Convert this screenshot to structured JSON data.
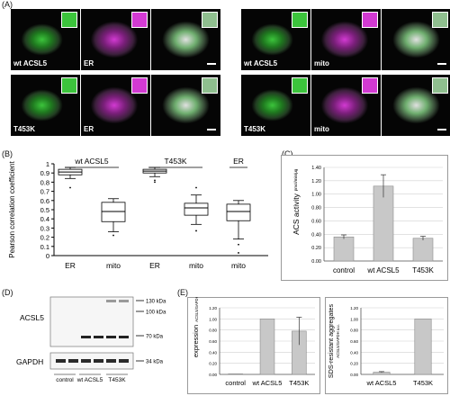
{
  "panels": {
    "A": "(A)",
    "B": "(B)",
    "C": "(C)",
    "D": "(D)",
    "E": "(E)"
  },
  "panel_a": {
    "images": [
      {
        "label": "wt ACSL5",
        "channel": "green"
      },
      {
        "label": "ER",
        "channel": "magenta"
      },
      {
        "label": "",
        "channel": "merge"
      },
      {
        "label": "wt ACSL5",
        "channel": "green"
      },
      {
        "label": "mito",
        "channel": "magenta"
      },
      {
        "label": "",
        "channel": "merge"
      },
      {
        "label": "T453K",
        "channel": "green"
      },
      {
        "label": "ER",
        "channel": "magenta"
      },
      {
        "label": "",
        "channel": "merge"
      },
      {
        "label": "T453K",
        "channel": "green"
      },
      {
        "label": "mito",
        "channel": "magenta"
      },
      {
        "label": "",
        "channel": "merge"
      }
    ],
    "colors": {
      "green": "#3cc43c",
      "magenta": "#d23ad2",
      "merge": "#bfbfbf"
    }
  },
  "panel_d": {
    "rows": [
      "ACSL5",
      "GAPDH"
    ],
    "markers": [
      "130 kDa",
      "100 kDa",
      "70 kDa",
      "34 kDa"
    ],
    "lanes": [
      "control",
      "wt ACSL5",
      "T453K"
    ]
  },
  "chart_data": [
    {
      "type": "box",
      "panel": "B",
      "ylabel": "Pearson correlation coefficient",
      "ylim": [
        0,
        1
      ],
      "yticks": [
        "0",
        "0.1",
        "0.2",
        "0.3",
        "0.4",
        "0.5",
        "0.6",
        "0.7",
        "0.8",
        "0.9",
        "1"
      ],
      "group_labels": [
        "wt ACSL5",
        "T453K",
        "ER"
      ],
      "categories": [
        "ER",
        "mito",
        "ER",
        "mito",
        "mito"
      ],
      "boxes": [
        {
          "whisker_low": 0.84,
          "q1": 0.88,
          "median": 0.91,
          "q3": 0.94,
          "whisker_high": 0.96,
          "outliers": [
            0.74
          ]
        },
        {
          "whisker_low": 0.26,
          "q1": 0.37,
          "median": 0.48,
          "q3": 0.58,
          "whisker_high": 0.62,
          "outliers": [
            0.22
          ]
        },
        {
          "whisker_low": 0.86,
          "q1": 0.9,
          "median": 0.92,
          "q3": 0.94,
          "whisker_high": 0.96,
          "outliers": [
            0.82,
            0.8
          ]
        },
        {
          "whisker_low": 0.34,
          "q1": 0.44,
          "median": 0.52,
          "q3": 0.57,
          "whisker_high": 0.66,
          "outliers": [
            0.27,
            0.74
          ]
        },
        {
          "whisker_low": 0.18,
          "q1": 0.38,
          "median": 0.48,
          "q3": 0.56,
          "whisker_high": 0.6,
          "outliers": [
            0.12,
            0.03
          ]
        }
      ]
    },
    {
      "type": "bar",
      "panel": "C",
      "ylabel": "ACS activity",
      "yunit": "pmol/min/µg",
      "categories": [
        "control",
        "wt ACSL5",
        "T453K"
      ],
      "values": [
        0.36,
        1.12,
        0.34
      ],
      "errors": [
        0.03,
        0.17,
        0.03
      ],
      "ylim": [
        0,
        1.4
      ],
      "yticks": [
        "0.00",
        "0.20",
        "0.40",
        "0.60",
        "0.80",
        "1.00",
        "1.20",
        "1.40"
      ]
    },
    {
      "type": "bar",
      "panel": "E-left",
      "ylabel": "expression",
      "yunit": "ACSL5/GAPDH a.u.",
      "categories": [
        "control",
        "wt ACSL5",
        "T453K"
      ],
      "values": [
        0.01,
        1.0,
        0.78
      ],
      "errors": [
        0,
        0,
        0.25
      ],
      "ylim": [
        0,
        1.2
      ],
      "yticks": [
        "0.00",
        "0.20",
        "0.40",
        "0.60",
        "0.80",
        "1.00",
        "1.20"
      ]
    },
    {
      "type": "bar",
      "panel": "E-right",
      "ylabel": "SDS-resistant aggregates",
      "yunit": "ACSL5/GAPDH a.u.",
      "categories": [
        "wt ACSL5",
        "T453K"
      ],
      "values": [
        0.04,
        1.0
      ],
      "errors": [
        0.01,
        0
      ],
      "ylim": [
        0,
        1.2
      ],
      "yticks": [
        "0.00",
        "0.20",
        "0.40",
        "0.60",
        "0.80",
        "1.00",
        "1.20"
      ]
    }
  ]
}
